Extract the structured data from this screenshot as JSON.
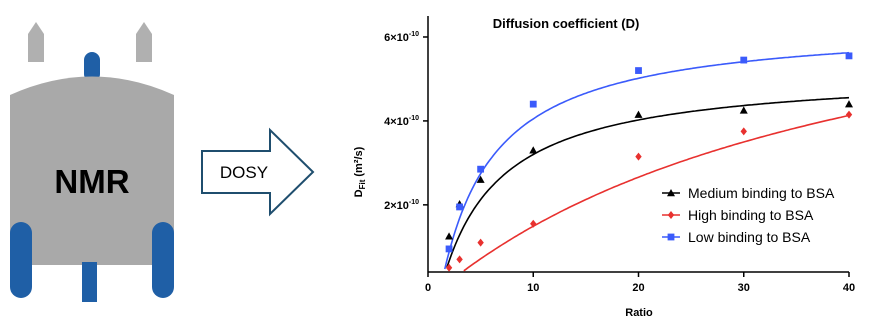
{
  "nmr_label": "NMR",
  "arrow_label": "DOSY",
  "chart_data": {
    "type": "scatter",
    "title": "Diffusion coefficient (D)",
    "xlabel": "Ratio",
    "ylabel_main": "D",
    "ylabel_sub": "Fit",
    "ylabel_units": "(m²/s)",
    "xlim": [
      0,
      40
    ],
    "ylim": [
      4e-11,
      6.5e-10
    ],
    "xticks": [
      0,
      10,
      20,
      30,
      40
    ],
    "yticks": [
      {
        "value": 2e-10,
        "mantissa": "2×10",
        "exp": "-10"
      },
      {
        "value": 4e-10,
        "mantissa": "4×10",
        "exp": "-10"
      },
      {
        "value": 6e-10,
        "mantissa": "6×10",
        "exp": "-10"
      }
    ],
    "grid": false,
    "legend_position": "bottom-right",
    "series": [
      {
        "name": "Medium binding to BSA",
        "color": "#000000",
        "marker": "triangle",
        "x": [
          2,
          3,
          5,
          10,
          20,
          30,
          40
        ],
        "y": [
          1.25e-10,
          2.02e-10,
          2.6e-10,
          3.3e-10,
          4.15e-10,
          4.25e-10,
          4.4e-10
        ],
        "fit": {
          "model": "hyperbolic",
          "ymax": 5.2e-10,
          "k": 5.5,
          "x0": 1.2
        }
      },
      {
        "name": "High binding to BSA",
        "color": "#e8312f",
        "marker": "diamond",
        "x": [
          2,
          3,
          5,
          10,
          20,
          30,
          40
        ],
        "y": [
          5e-11,
          7e-11,
          1.1e-10,
          1.55e-10,
          3.15e-10,
          3.75e-10,
          4.15e-10
        ],
        "fit": {
          "model": "hyperbolic",
          "ymax": 8.6e-10,
          "k": 42,
          "x0": 1.2
        }
      },
      {
        "name": "Low binding to BSA",
        "color": "#3b5bfb",
        "marker": "square",
        "x": [
          2,
          3,
          5,
          10,
          20,
          30,
          40
        ],
        "y": [
          9.5e-11,
          1.95e-10,
          2.85e-10,
          4.4e-10,
          5.2e-10,
          5.45e-10,
          5.55e-10
        ],
        "fit": {
          "model": "hyperbolic",
          "ymax": 6.35e-10,
          "k": 5.0,
          "x0": 1.2
        }
      }
    ]
  }
}
